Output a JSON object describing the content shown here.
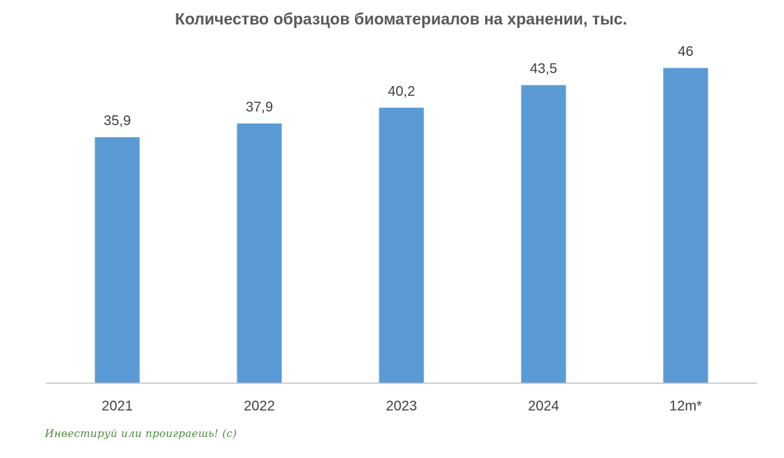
{
  "chart_data": {
    "type": "bar",
    "title": "Количество образцов биоматериалов на хранении, тыс.",
    "categories": [
      "2021",
      "2022",
      "2023",
      "2024",
      "12m*"
    ],
    "values": [
      35.9,
      37.9,
      40.2,
      43.5,
      46
    ],
    "value_labels": [
      "35,9",
      "37,9",
      "40,2",
      "43,5",
      "46"
    ],
    "xlabel": "",
    "ylabel": "",
    "ylim": [
      0,
      47
    ],
    "grid": false,
    "legend": "none",
    "colors": {
      "bar": "#5b9bd5",
      "title": "#595959",
      "labels": "#404040",
      "axis": "#bfbfbf"
    }
  },
  "watermark": {
    "text": "Инвестируй или проиграешь! (с)",
    "color": "#4e8a3e"
  }
}
